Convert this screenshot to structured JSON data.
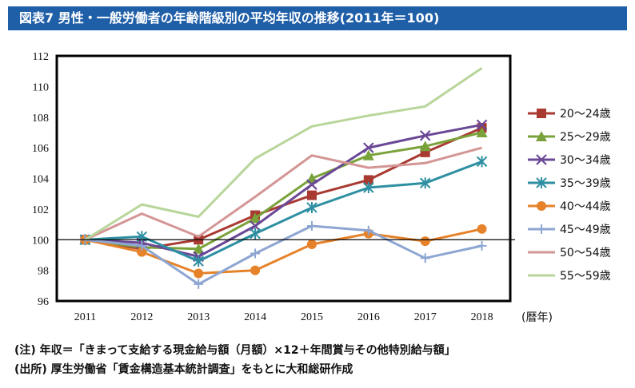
{
  "title": "図表7 男性・一般労働者の年齢階級別の平均年収の推移(2011年＝100)",
  "notes": {
    "note1": "(注) 年収＝「きまって支給する現金給与額（月額）×12＋年間賞与その他特別給与額」",
    "note2": "(出所) 厚生労働省「賃金構造基本統計調査」をもとに大和総研作成"
  },
  "chart_data": {
    "type": "line",
    "x": [
      "2011",
      "2012",
      "2013",
      "2014",
      "2015",
      "2016",
      "2017",
      "2018"
    ],
    "xlabel": "(暦年)",
    "ylim": [
      96,
      112
    ],
    "yticks": [
      96,
      98,
      100,
      102,
      104,
      106,
      108,
      110,
      112
    ],
    "reference_line": 100,
    "legend_position": "right",
    "series": [
      {
        "name": "20～24歳",
        "color": "#a83a32",
        "marker": "square",
        "values": [
          100,
          99.4,
          100.0,
          101.6,
          102.9,
          103.9,
          105.7,
          107.3
        ]
      },
      {
        "name": "25～29歳",
        "color": "#7aa23a",
        "marker": "triangle",
        "values": [
          100,
          99.5,
          99.4,
          101.4,
          104.0,
          105.5,
          106.1,
          107.0
        ]
      },
      {
        "name": "30～34歳",
        "color": "#6a4896",
        "marker": "x",
        "values": [
          100,
          99.8,
          98.9,
          100.9,
          103.6,
          106.0,
          106.8,
          107.5
        ]
      },
      {
        "name": "35～39歳",
        "color": "#2e8fa3",
        "marker": "star",
        "values": [
          100,
          100.2,
          98.6,
          100.4,
          102.1,
          103.4,
          103.7,
          105.1
        ]
      },
      {
        "name": "40～44歳",
        "color": "#e5822a",
        "marker": "circle",
        "values": [
          100,
          99.2,
          97.8,
          98.0,
          99.7,
          100.4,
          99.9,
          100.7
        ]
      },
      {
        "name": "45～49歳",
        "color": "#8ea6d2",
        "marker": "plus",
        "values": [
          100,
          99.6,
          97.1,
          99.1,
          100.9,
          100.6,
          98.8,
          99.6
        ]
      },
      {
        "name": "50～54歳",
        "color": "#d49595",
        "marker": "none",
        "values": [
          100,
          101.7,
          100.2,
          102.8,
          105.5,
          104.7,
          105.0,
          106.0
        ]
      },
      {
        "name": "55～59歳",
        "color": "#b8d59a",
        "marker": "none",
        "values": [
          100,
          102.3,
          101.5,
          105.3,
          107.4,
          108.1,
          108.7,
          111.2
        ]
      }
    ]
  }
}
